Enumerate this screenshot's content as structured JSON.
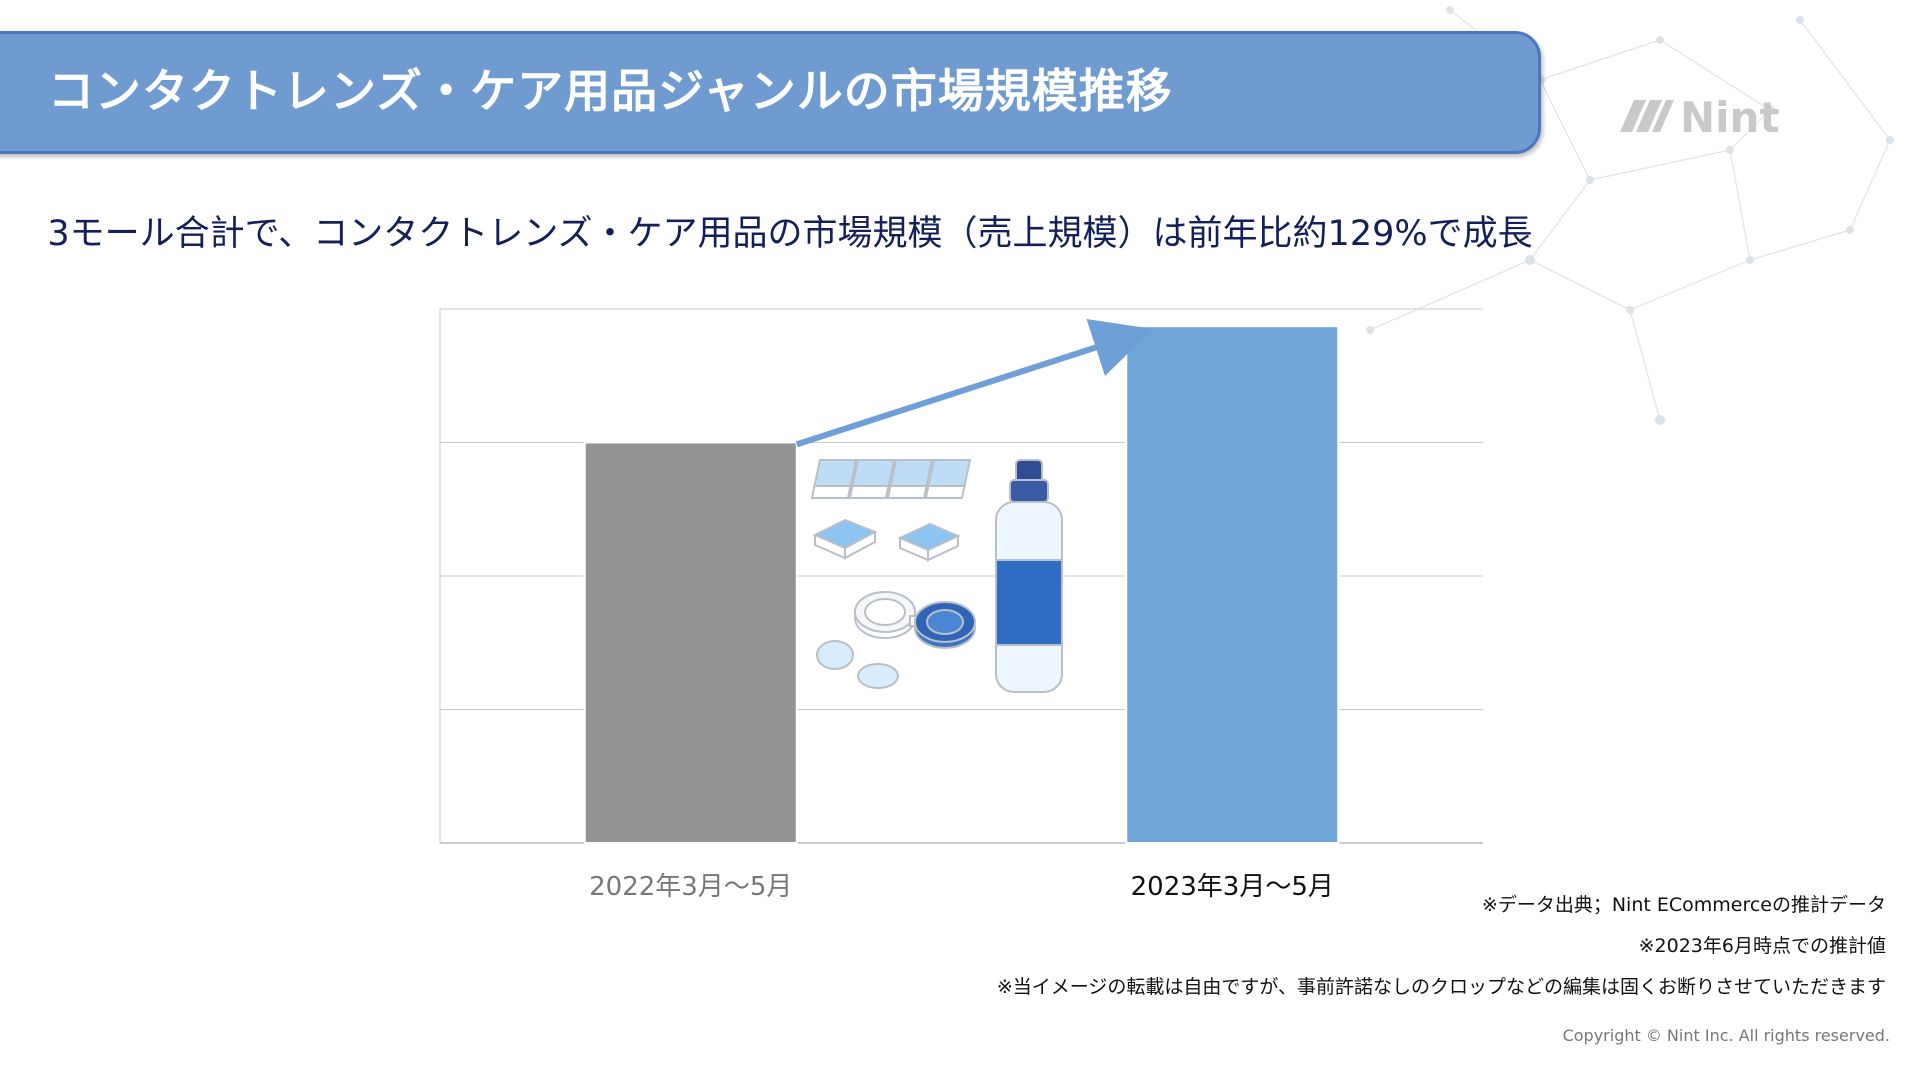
{
  "header": {
    "title": "コンタクトレンズ・ケア用品ジャンルの市場規模推移",
    "logo_text": "Nint"
  },
  "subtitle": "3モール合計で、コンタクトレンズ・ケア用品の市場規模（売上規模）は前年比約129%で成長",
  "chart_data": {
    "type": "bar",
    "categories": [
      "2022年3月〜5月",
      "2023年3月〜5月"
    ],
    "values": [
      100,
      129
    ],
    "ylim": [
      0,
      133.3
    ],
    "grid": true,
    "growth_arrow": true,
    "colors": [
      "#939393",
      "#70a5d8"
    ],
    "label_colors": [
      "#777777",
      "#111111"
    ]
  },
  "notes": [
    "※データ出典；Nint ECommerceの推計データ",
    "※2023年6月時点での推計値",
    "※当イメージの転載は自由ですが、事前許諾なしのクロップなどの編集は固くお断りさせていただきます"
  ],
  "copyright": "Copyright © Nint Inc. All rights reserved.",
  "illustration": {
    "icon": "contact-lens-care-products-icon"
  }
}
